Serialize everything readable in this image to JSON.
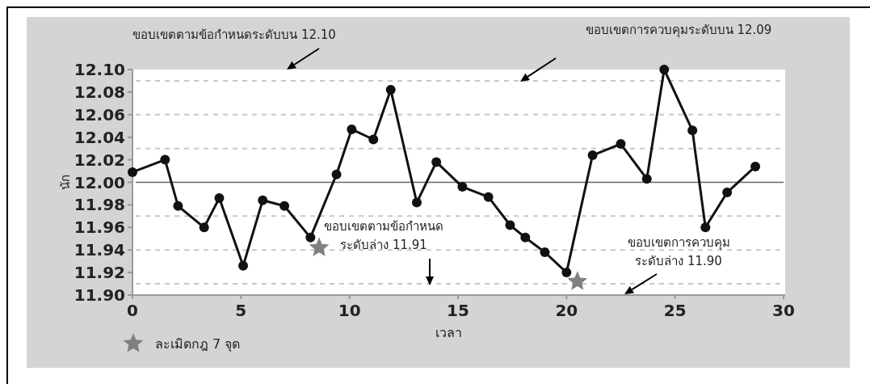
{
  "chart_data": {
    "type": "line",
    "xlabel": "เวลา",
    "ylabel": "นัก",
    "xlim": [
      0,
      30
    ],
    "xticks": [
      0,
      5,
      10,
      15,
      20,
      25,
      30
    ],
    "ylim": [
      11.9,
      12.1
    ],
    "yticks": [
      {
        "value": 11.9,
        "label": "11.90"
      },
      {
        "value": 11.92,
        "label": "11.92"
      },
      {
        "value": 11.94,
        "label": "11.94"
      },
      {
        "value": 11.96,
        "label": "11.96"
      },
      {
        "value": 11.98,
        "label": "11.98"
      },
      {
        "value": 12.0,
        "label": "12.00"
      },
      {
        "value": 12.02,
        "label": "12.02"
      },
      {
        "value": 12.04,
        "label": "12.04"
      },
      {
        "value": 12.06,
        "label": "12.06"
      },
      {
        "value": 12.08,
        "label": "12.08"
      },
      {
        "value": 12.1,
        "label": "12.10"
      }
    ],
    "marker": "circle",
    "line_style": "solid",
    "grid": false,
    "legend": "bottom left",
    "series": [
      {
        "type": "line",
        "color": "#111111",
        "x": [
          0,
          1.5,
          2.1,
          3.3,
          4.0,
          5.1,
          6.0,
          7.0,
          8.2,
          9.4,
          10.1,
          11.1,
          11.9,
          13.1,
          14.0,
          15.2,
          16.4,
          17.4,
          18.1,
          19.0,
          20.0,
          21.2,
          22.5,
          23.7,
          24.5,
          25.8,
          26.4,
          27.4,
          28.7
        ],
        "values": [
          12.009,
          12.02,
          11.979,
          11.96,
          11.986,
          11.926,
          11.984,
          11.979,
          11.951,
          12.007,
          12.047,
          12.038,
          12.082,
          11.982,
          12.018,
          11.996,
          11.987,
          11.962,
          11.951,
          11.938,
          11.92,
          12.024,
          12.034,
          12.003,
          12.1,
          12.046,
          11.96,
          11.991,
          12.014
        ]
      },
      {
        "type": "scatter",
        "name": "ละเมิดกฎ 7 จุด",
        "color": "#808080",
        "marker": "star",
        "x": [
          8.6,
          20.5
        ],
        "values": [
          11.942,
          11.912
        ]
      }
    ],
    "ref_lines": [
      {
        "axis": "y",
        "value": 12.09,
        "line_style": "dashed",
        "color": "#c8c8c8"
      },
      {
        "axis": "y",
        "value": 12.06,
        "line_style": "dashed",
        "color": "#c8c8c8"
      },
      {
        "axis": "y",
        "value": 12.03,
        "line_style": "dashed",
        "color": "#c8c8c8"
      },
      {
        "axis": "y",
        "value": 12.0,
        "line_style": "solid",
        "color": "#666666"
      },
      {
        "axis": "y",
        "value": 11.97,
        "line_style": "dashed",
        "color": "#c8c8c8"
      },
      {
        "axis": "y",
        "value": 11.94,
        "line_style": "dashed",
        "color": "#c8c8c8"
      },
      {
        "axis": "y",
        "value": 11.91,
        "line_style": "dashed",
        "color": "#c8c8c8"
      }
    ],
    "annotations": [
      "ขอบเขตตามข้อกำหนดระดับบน 12.10",
      "ขอบเขตการควบคุมระดับบน 12.09",
      "ขอบเขตตามข้อกำหนด\nระดับล่าง 11.91",
      "ขอบเขตการควบคุม\nระดับล่าง 11.90"
    ]
  }
}
